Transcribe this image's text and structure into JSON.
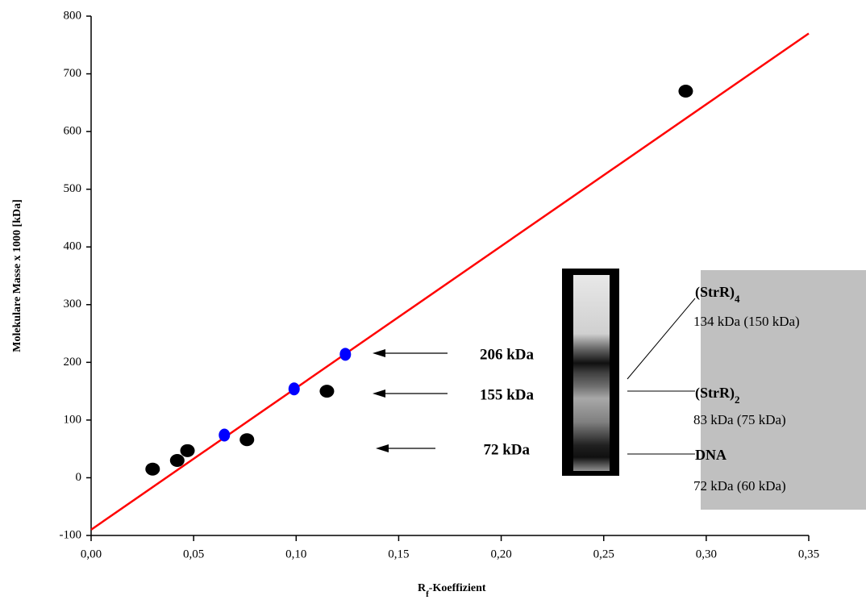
{
  "chart_data": {
    "type": "scatter",
    "x_label_parts": [
      "R",
      "f",
      "-Koeffizient"
    ],
    "y_label": "Molekulare Masse x 1000 [kDa]",
    "xlim": [
      0,
      0.35
    ],
    "ylim": [
      -100,
      800
    ],
    "xticks": [
      {
        "value": 0,
        "label": "0,00"
      },
      {
        "value": 0.05,
        "label": "0,05"
      },
      {
        "value": 0.1,
        "label": "0,10"
      },
      {
        "value": 0.15,
        "label": "0,15"
      },
      {
        "value": 0.2,
        "label": "0,20"
      },
      {
        "value": 0.25,
        "label": "0,25"
      },
      {
        "value": 0.3,
        "label": "0,30"
      },
      {
        "value": 0.35,
        "label": "0,35"
      }
    ],
    "yticks": [
      -100,
      0,
      100,
      200,
      300,
      400,
      500,
      600,
      700,
      800
    ],
    "series": [
      {
        "color": "#000000",
        "x": [
          0.03,
          0.042,
          0.047,
          0.076,
          0.115,
          0.29
        ],
        "values": [
          15,
          30,
          47,
          66,
          150,
          670
        ]
      },
      {
        "color": "#0000ff",
        "x": [
          0.065,
          0.099,
          0.124
        ],
        "values": [
          74,
          154,
          214
        ]
      }
    ],
    "fit": {
      "color": "#ff0000",
      "x": [
        0,
        0.35
      ],
      "values": [
        -90,
        770
      ]
    },
    "annotations": [
      "206 kDa",
      "155 kDa",
      "72 kDa"
    ],
    "gel_labels": [
      {
        "name": "(StrR)",
        "sub": "4",
        "size": "134 kDa (150 kDa)"
      },
      {
        "name": "(StrR)",
        "sub": "2",
        "size": "83 kDa (75 kDa)"
      },
      {
        "name": "DNA",
        "size": "72 kDa (60 kDa)"
      }
    ]
  }
}
